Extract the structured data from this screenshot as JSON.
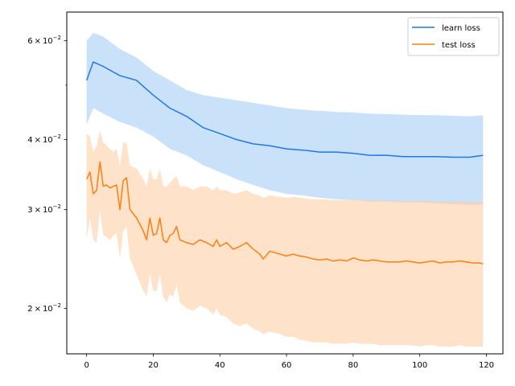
{
  "chart_data": {
    "type": "line",
    "title": "",
    "xlabel": "",
    "ylabel": "",
    "yscale": "log",
    "xlim": [
      -5.95,
      124.95
    ],
    "ylim": [
      0.0166,
      0.0675
    ],
    "grid": false,
    "legend_position": "top-right",
    "x_ticks": [
      {
        "value": 0,
        "label": "0"
      },
      {
        "value": 20,
        "label": "20"
      },
      {
        "value": 40,
        "label": "40"
      },
      {
        "value": 60,
        "label": "60"
      },
      {
        "value": 80,
        "label": "80"
      },
      {
        "value": 100,
        "label": "100"
      },
      {
        "value": 120,
        "label": "120"
      }
    ],
    "y_ticks": [
      {
        "value": 0.02,
        "base": "2",
        "mult": "×",
        "pow": "10",
        "exp": "−2"
      },
      {
        "value": 0.03,
        "base": "3",
        "mult": "×",
        "pow": "10",
        "exp": "−2"
      },
      {
        "value": 0.04,
        "base": "4",
        "mult": "×",
        "pow": "10",
        "exp": "−2"
      },
      {
        "value": 0.06,
        "base": "6",
        "mult": "×",
        "pow": "10",
        "exp": "−2"
      }
    ],
    "y_minor_ticks": [
      0.05
    ],
    "series": [
      {
        "name": "learn loss",
        "color": "#1f77e8",
        "band_color": "#a6cdf7",
        "x": [
          0,
          2,
          5,
          10,
          15,
          20,
          25,
          30,
          35,
          40,
          45,
          50,
          55,
          60,
          65,
          70,
          75,
          80,
          85,
          90,
          95,
          100,
          105,
          110,
          115,
          119
        ],
        "mean": [
          0.051,
          0.055,
          0.054,
          0.052,
          0.051,
          0.048,
          0.0455,
          0.044,
          0.042,
          0.041,
          0.04,
          0.0393,
          0.039,
          0.0385,
          0.0383,
          0.038,
          0.038,
          0.0378,
          0.0375,
          0.0375,
          0.0373,
          0.0373,
          0.0373,
          0.0372,
          0.0372,
          0.0375
        ],
        "upper": [
          0.06,
          0.062,
          0.061,
          0.058,
          0.056,
          0.053,
          0.051,
          0.049,
          0.048,
          0.0475,
          0.047,
          0.0465,
          0.046,
          0.0455,
          0.0452,
          0.045,
          0.0448,
          0.0447,
          0.0445,
          0.0444,
          0.0443,
          0.0442,
          0.0442,
          0.0441,
          0.044,
          0.0442
        ],
        "lower": [
          0.0425,
          0.0455,
          0.0445,
          0.043,
          0.042,
          0.0405,
          0.0385,
          0.0375,
          0.036,
          0.035,
          0.034,
          0.0332,
          0.0325,
          0.032,
          0.0318,
          0.0315,
          0.0313,
          0.0312,
          0.031,
          0.031,
          0.0309,
          0.0309,
          0.0308,
          0.0307,
          0.0306,
          0.0306
        ]
      },
      {
        "name": "test loss",
        "color": "#ff7f0e",
        "band_color": "#ffcfa6",
        "x": [
          0,
          1,
          2,
          3,
          4,
          5,
          6,
          7,
          8,
          9,
          10,
          11,
          12,
          13,
          15,
          17,
          18,
          19,
          20,
          21,
          22,
          23,
          24,
          25,
          26,
          27,
          28,
          30,
          32,
          34,
          36,
          38,
          39,
          40,
          42,
          44,
          46,
          48,
          50,
          52,
          53,
          55,
          58,
          60,
          62,
          64,
          66,
          68,
          70,
          72,
          74,
          76,
          78,
          80,
          82,
          84,
          86,
          88,
          90,
          92,
          94,
          96,
          98,
          100,
          102,
          104,
          106,
          108,
          110,
          112,
          114,
          116,
          118,
          119
        ],
        "mean": [
          0.034,
          0.035,
          0.032,
          0.0325,
          0.0365,
          0.033,
          0.0332,
          0.0328,
          0.033,
          0.0332,
          0.03,
          0.0338,
          0.0342,
          0.03,
          0.029,
          0.0275,
          0.0265,
          0.029,
          0.027,
          0.0272,
          0.029,
          0.0265,
          0.0262,
          0.027,
          0.0272,
          0.028,
          0.0265,
          0.0262,
          0.026,
          0.0265,
          0.0262,
          0.0258,
          0.0265,
          0.0258,
          0.0262,
          0.0255,
          0.0258,
          0.0262,
          0.0255,
          0.025,
          0.0245,
          0.0253,
          0.025,
          0.0248,
          0.025,
          0.0248,
          0.0247,
          0.0245,
          0.0244,
          0.0245,
          0.0243,
          0.0244,
          0.0243,
          0.0246,
          0.0244,
          0.0243,
          0.0244,
          0.0243,
          0.0242,
          0.0242,
          0.0242,
          0.0243,
          0.0242,
          0.0241,
          0.0242,
          0.0243,
          0.0241,
          0.0242,
          0.0242,
          0.0243,
          0.0242,
          0.0241,
          0.0241,
          0.024
        ],
        "upper": [
          0.041,
          0.0405,
          0.038,
          0.039,
          0.0415,
          0.0395,
          0.039,
          0.0385,
          0.038,
          0.0385,
          0.036,
          0.0395,
          0.0395,
          0.036,
          0.0355,
          0.034,
          0.033,
          0.0355,
          0.034,
          0.034,
          0.0355,
          0.033,
          0.033,
          0.0335,
          0.034,
          0.0345,
          0.033,
          0.033,
          0.0325,
          0.033,
          0.033,
          0.0325,
          0.033,
          0.0325,
          0.0325,
          0.032,
          0.0322,
          0.0325,
          0.032,
          0.0318,
          0.0315,
          0.0318,
          0.0316,
          0.0315,
          0.0316,
          0.0315,
          0.0314,
          0.0313,
          0.0313,
          0.0313,
          0.0312,
          0.0312,
          0.0312,
          0.0313,
          0.0312,
          0.0312,
          0.0312,
          0.0311,
          0.0311,
          0.0311,
          0.0311,
          0.0311,
          0.0311,
          0.031,
          0.0311,
          0.0311,
          0.031,
          0.031,
          0.031,
          0.0311,
          0.031,
          0.031,
          0.031,
          0.031
        ],
        "lower": [
          0.0265,
          0.029,
          0.0265,
          0.0262,
          0.03,
          0.027,
          0.0268,
          0.0265,
          0.027,
          0.0272,
          0.0245,
          0.0275,
          0.028,
          0.0245,
          0.023,
          0.0215,
          0.021,
          0.023,
          0.0215,
          0.0215,
          0.023,
          0.021,
          0.0205,
          0.0212,
          0.021,
          0.022,
          0.0205,
          0.02,
          0.0198,
          0.0202,
          0.02,
          0.0195,
          0.02,
          0.0195,
          0.0193,
          0.0188,
          0.0186,
          0.0188,
          0.0184,
          0.0182,
          0.018,
          0.0182,
          0.018,
          0.0178,
          0.0178,
          0.0176,
          0.0175,
          0.0174,
          0.0174,
          0.0174,
          0.0173,
          0.0173,
          0.0173,
          0.0174,
          0.0173,
          0.0173,
          0.0173,
          0.0172,
          0.0172,
          0.0172,
          0.0172,
          0.0172,
          0.0172,
          0.0171,
          0.0172,
          0.0172,
          0.0171,
          0.0171,
          0.0171,
          0.0172,
          0.0171,
          0.0171,
          0.0171,
          0.0171
        ]
      }
    ]
  }
}
